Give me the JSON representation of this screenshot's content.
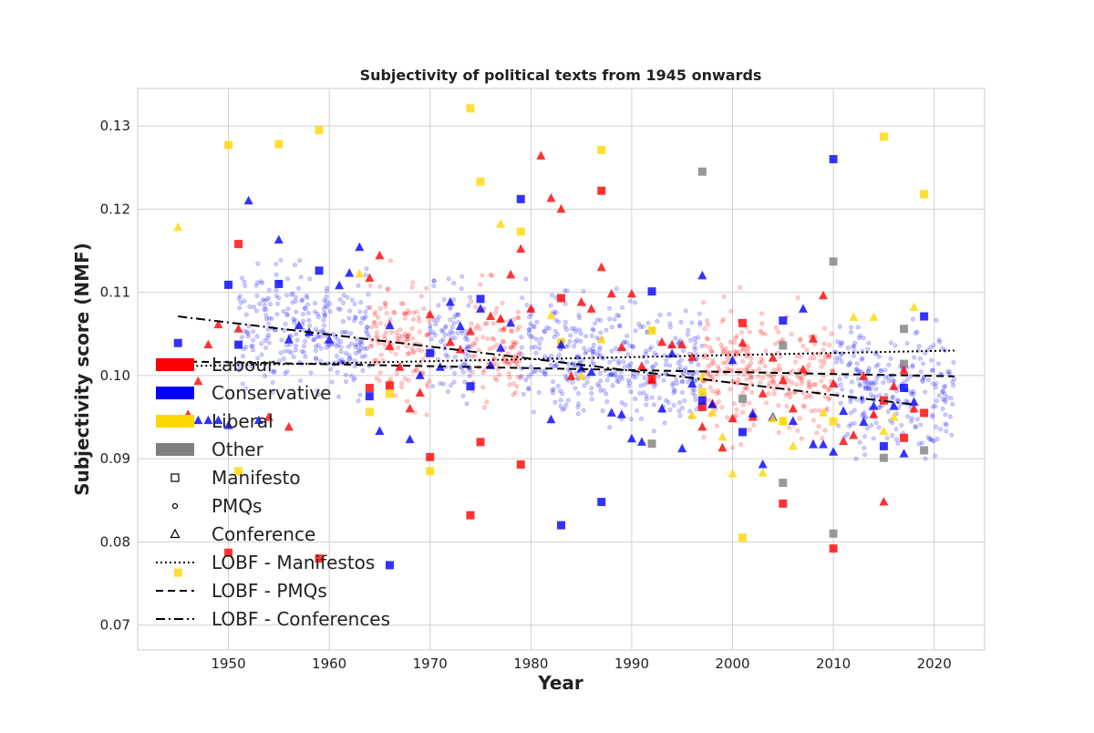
{
  "chart_data": {
    "type": "scatter",
    "title": "Subjectivity of political texts from 1945 onwards",
    "xlabel": "Year",
    "ylabel": "Subjectivity score (NMF)",
    "xlim": [
      1941,
      2025
    ],
    "ylim": [
      0.067,
      0.1345
    ],
    "x_ticks": [
      1950,
      1960,
      1970,
      1980,
      1990,
      2000,
      2010,
      2020
    ],
    "x_tick_labels": [
      "1950",
      "1960",
      "1970",
      "1980",
      "1990",
      "2000",
      "2010",
      "2020"
    ],
    "y_ticks": [
      0.07,
      0.08,
      0.09,
      0.1,
      0.11,
      0.12,
      0.13
    ],
    "y_tick_labels": [
      "0.07",
      "0.08",
      "0.09",
      "0.10",
      "0.11",
      "0.12",
      "0.13"
    ],
    "grid": true,
    "legend_position": "center-left",
    "colors": {
      "Labour": "#ff0000",
      "Conservative": "#0000ff",
      "Liberal": "#ffd700",
      "Other": "#808080"
    },
    "legend": [
      {
        "label": "Labour",
        "kind": "patch",
        "color": "#ff0000"
      },
      {
        "label": "Conservative",
        "kind": "patch",
        "color": "#0000ff"
      },
      {
        "label": "Liberal",
        "kind": "patch",
        "color": "#ffd700"
      },
      {
        "label": "Other",
        "kind": "patch",
        "color": "#808080"
      },
      {
        "label": "Manifesto",
        "kind": "marker",
        "marker": "square"
      },
      {
        "label": "PMQs",
        "kind": "marker",
        "marker": "circle"
      },
      {
        "label": "Conference",
        "kind": "marker",
        "marker": "triangle"
      },
      {
        "label": "LOBF - Manifestos",
        "kind": "line",
        "dash": "dotted"
      },
      {
        "label": "LOBF - PMQs",
        "kind": "line",
        "dash": "dashed"
      },
      {
        "label": "LOBF - Conferences",
        "kind": "line",
        "dash": "dashdot"
      }
    ],
    "trend_lines": [
      {
        "name": "LOBF - Manifestos",
        "dash": "dotted",
        "x": [
          1945,
          2022
        ],
        "y": [
          0.1011,
          0.103
        ]
      },
      {
        "name": "LOBF - PMQs",
        "dash": "dashed",
        "x": [
          1945,
          2022
        ],
        "y": [
          0.1017,
          0.0999
        ]
      },
      {
        "name": "LOBF - Conferences",
        "dash": "dashdot",
        "x": [
          1945,
          2018
        ],
        "y": [
          0.1071,
          0.0965
        ]
      }
    ],
    "pmqs_background": {
      "marker": "circle",
      "party_periods": [
        {
          "party": "Conservative",
          "from": 1951,
          "to": 1964
        },
        {
          "party": "Labour",
          "from": 1964,
          "to": 1970
        },
        {
          "party": "Conservative",
          "from": 1970,
          "to": 1974
        },
        {
          "party": "Labour",
          "from": 1974,
          "to": 1979
        },
        {
          "party": "Conservative",
          "from": 1979,
          "to": 1997
        },
        {
          "party": "Labour",
          "from": 1997,
          "to": 2010
        },
        {
          "party": "Conservative",
          "from": 2010,
          "to": 2022
        }
      ],
      "y_range": [
        0.078,
        0.135
      ]
    },
    "series": [
      {
        "party": "Labour",
        "marker": "square",
        "x": [
          1950,
          1951,
          1959,
          1964,
          1966,
          1970,
          1974,
          1975,
          1979,
          1983,
          1987,
          1992,
          1997,
          2001,
          2005,
          2010,
          2015,
          2017,
          2019
        ],
        "y": [
          0.0787,
          0.1158,
          0.078,
          0.0985,
          0.0988,
          0.0902,
          0.0832,
          0.092,
          0.0893,
          0.1093,
          0.1222,
          0.0996,
          0.0962,
          0.1063,
          0.0846,
          0.0792,
          0.097,
          0.0925,
          0.0955
        ]
      },
      {
        "party": "Conservative",
        "marker": "square",
        "x": [
          1945,
          1950,
          1951,
          1955,
          1959,
          1964,
          1966,
          1970,
          1974,
          1975,
          1979,
          1983,
          1987,
          1992,
          1997,
          2001,
          2005,
          2010,
          2015,
          2017,
          2019
        ],
        "y": [
          0.1039,
          0.1109,
          0.1037,
          0.111,
          0.1126,
          0.0975,
          0.0772,
          0.1027,
          0.0987,
          0.1092,
          0.1212,
          0.082,
          0.0848,
          0.1101,
          0.097,
          0.0932,
          0.1066,
          0.126,
          0.0915,
          0.0985,
          0.1071
        ]
      },
      {
        "party": "Liberal",
        "marker": "square",
        "x": [
          1945,
          1950,
          1951,
          1955,
          1959,
          1964,
          1966,
          1970,
          1974,
          1975,
          1979,
          1983,
          1987,
          1992,
          1997,
          2001,
          2005,
          2010,
          2015,
          2019
        ],
        "y": [
          0.0763,
          0.1277,
          0.0885,
          0.1278,
          0.1295,
          0.0956,
          0.0978,
          0.0885,
          0.1321,
          0.1233,
          0.1173,
          0.104,
          0.1271,
          0.1054,
          0.098,
          0.0805,
          0.0945,
          0.0945,
          0.1287,
          0.1218
        ]
      },
      {
        "party": "Other",
        "marker": "square",
        "x": [
          1992,
          1997,
          2001,
          2005,
          2005,
          2010,
          2010,
          2015,
          2017,
          2017,
          2019
        ],
        "y": [
          0.0918,
          0.1245,
          0.0972,
          0.0871,
          0.1036,
          0.081,
          0.1137,
          0.0901,
          0.1056,
          0.1014,
          0.091
        ]
      },
      {
        "party": "Labour",
        "marker": "triangle",
        "x": [
          1946,
          1947,
          1948,
          1949,
          1951,
          1954,
          1956,
          1964,
          1965,
          1966,
          1967,
          1968,
          1969,
          1970,
          1972,
          1973,
          1974,
          1976,
          1977,
          1978,
          1979,
          1980,
          1981,
          1982,
          1983,
          1984,
          1985,
          1986,
          1987,
          1988,
          1989,
          1990,
          1991,
          1992,
          1993,
          1994,
          1995,
          1996,
          1997,
          1998,
          1999,
          2000,
          2001,
          2002,
          2003,
          2004,
          2005,
          2006,
          2007,
          2008,
          2009,
          2010,
          2011,
          2012,
          2013,
          2014,
          2015,
          2016,
          2017,
          2018
        ],
        "y": [
          0.0953,
          0.0993,
          0.1037,
          0.1061,
          0.1056,
          0.095,
          0.0938,
          0.1117,
          0.1144,
          0.1035,
          0.101,
          0.096,
          0.0979,
          0.1073,
          0.104,
          0.1031,
          0.1053,
          0.1071,
          0.1068,
          0.1121,
          0.1152,
          0.108,
          0.1264,
          0.1213,
          0.12,
          0.0999,
          0.1088,
          0.108,
          0.113,
          0.1098,
          0.1034,
          0.1098,
          0.1011,
          0.0994,
          0.104,
          0.1037,
          0.1037,
          0.1022,
          0.0938,
          0.0966,
          0.0913,
          0.0948,
          0.1039,
          0.095,
          0.0978,
          0.1021,
          0.0994,
          0.096,
          0.1007,
          0.1044,
          0.1096,
          0.099,
          0.0921,
          0.0928,
          0.0999,
          0.0953,
          0.0848,
          0.0987,
          0.1006,
          0.096
        ]
      },
      {
        "party": "Conservative",
        "marker": "triangle",
        "x": [
          1947,
          1948,
          1949,
          1950,
          1952,
          1953,
          1955,
          1956,
          1957,
          1958,
          1960,
          1961,
          1962,
          1963,
          1965,
          1966,
          1968,
          1969,
          1971,
          1972,
          1973,
          1975,
          1976,
          1977,
          1978,
          1982,
          1983,
          1985,
          1986,
          1988,
          1989,
          1990,
          1991,
          1993,
          1994,
          1995,
          1996,
          1997,
          1998,
          2000,
          2002,
          2003,
          2004,
          2006,
          2007,
          2008,
          2009,
          2010,
          2011,
          2013,
          2014,
          2016,
          2017,
          2018
        ],
        "y": [
          0.0946,
          0.0946,
          0.0946,
          0.094,
          0.121,
          0.0946,
          0.1163,
          0.1043,
          0.106,
          0.1052,
          0.1043,
          0.1108,
          0.1123,
          0.1154,
          0.0933,
          0.106,
          0.0923,
          0.1,
          0.101,
          0.1088,
          0.1059,
          0.108,
          0.1012,
          0.1033,
          0.1063,
          0.0947,
          0.1037,
          0.1008,
          0.1004,
          0.0955,
          0.0953,
          0.0924,
          0.092,
          0.096,
          0.1026,
          0.0912,
          0.099,
          0.112,
          0.0965,
          0.1018,
          0.0954,
          0.0893,
          0.095,
          0.0945,
          0.108,
          0.0917,
          0.0917,
          0.0908,
          0.0957,
          0.0944,
          0.0963,
          0.0963,
          0.0906,
          0.0968
        ]
      },
      {
        "party": "Liberal",
        "marker": "triangle",
        "x": [
          1945,
          1963,
          1977,
          1982,
          1985,
          1987,
          1996,
          1997,
          1998,
          1999,
          2000,
          2003,
          2004,
          2005,
          2006,
          2009,
          2012,
          2014,
          2015,
          2016,
          2018
        ],
        "y": [
          0.1178,
          0.1122,
          0.1182,
          0.1072,
          0.1,
          0.1043,
          0.0952,
          0.0998,
          0.0955,
          0.0926,
          0.0882,
          0.0883,
          0.0948,
          0.0945,
          0.0915,
          0.0955,
          0.107,
          0.107,
          0.0933,
          0.095,
          0.1082
        ]
      }
    ]
  }
}
